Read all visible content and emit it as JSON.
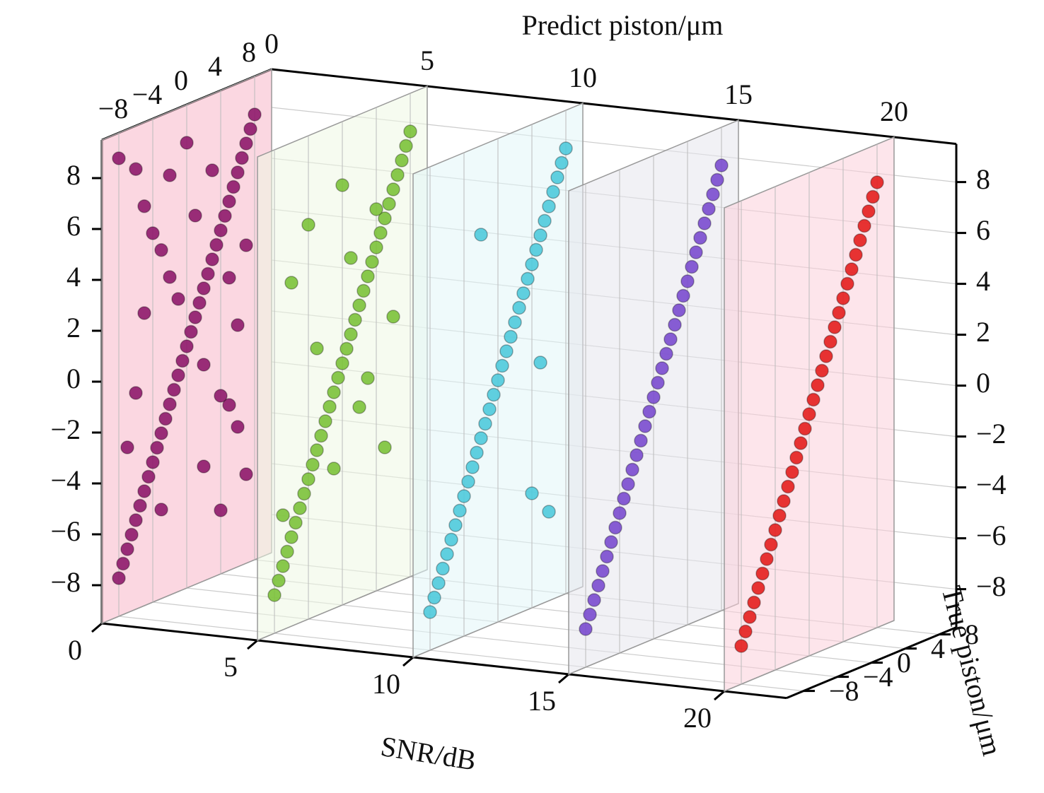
{
  "chart_data": {
    "type": "scatter3d",
    "x_label": "SNR/dB",
    "y_label": "True piston/μm",
    "z_label": "Predict piston/μm",
    "xlim": [
      0,
      22
    ],
    "xticks": [
      0,
      5,
      10,
      15,
      20
    ],
    "ylim": [
      -10,
      10
    ],
    "yticks": [
      {
        "value": -8,
        "label": "−8"
      },
      {
        "value": -4,
        "label": "−4"
      },
      0,
      4,
      8
    ],
    "zlim": [
      -9.5,
      9.5
    ],
    "zticks": [
      {
        "value": -8,
        "label": "−8"
      },
      {
        "value": -6,
        "label": "−6"
      },
      {
        "value": -4,
        "label": "−4"
      },
      {
        "value": -2,
        "label": "−2"
      },
      0,
      2,
      4,
      6,
      8
    ],
    "grid": true,
    "series": [
      {
        "snr": 0,
        "color": "#8e1a6c",
        "plane_color": "#f7b6c8",
        "true": [
          -8,
          -7.5,
          -7,
          -6.5,
          -6,
          -5.5,
          -5,
          -4.5,
          -4,
          -3.5,
          -3,
          -2.5,
          -2,
          -1.5,
          -1,
          -0.5,
          0,
          0.5,
          1,
          1.5,
          2,
          2.5,
          3,
          3.5,
          4,
          4.5,
          5,
          5.5,
          6,
          6.5,
          7,
          7.5,
          8,
          -8,
          -6,
          -5,
          -4,
          -3,
          -2,
          -1,
          6,
          5,
          4,
          2,
          7,
          -7,
          -6,
          -3,
          3,
          5,
          6,
          -2,
          0,
          1,
          2,
          -5,
          7,
          4
        ],
        "predict": [
          -8,
          -7.5,
          -7,
          -6.5,
          -6,
          -5.5,
          -5,
          -4.5,
          -4,
          -3.5,
          -3,
          -2.5,
          -2,
          -1.5,
          -1,
          -0.5,
          0,
          0.5,
          1,
          1.5,
          2,
          2.5,
          3,
          3.5,
          4,
          4.5,
          5,
          5.5,
          6,
          6.5,
          7,
          7.5,
          8,
          8.5,
          7.8,
          6.2,
          5,
          4.2,
          3,
          2,
          -4,
          -3,
          -2.5,
          -1,
          -6,
          -3,
          -1,
          -6,
          6.5,
          2,
          0,
          7,
          8,
          5,
          -5,
          2,
          3,
          -7
        ]
      },
      {
        "snr": 5,
        "color": "#7cc23a",
        "plane_color": "#eef7e4",
        "true": [
          -8,
          -7.5,
          -7,
          -6.5,
          -6,
          -5.5,
          -5,
          -4.5,
          -4,
          -3.5,
          -3,
          -2.5,
          -2,
          -1.5,
          -1,
          -0.5,
          0,
          0.5,
          1,
          1.5,
          2,
          2.5,
          3,
          3.5,
          4,
          4.5,
          5,
          5.5,
          6,
          6.5,
          7,
          7.5,
          8,
          -4,
          -6,
          0,
          2,
          5,
          -3,
          6,
          1,
          -1,
          3,
          -7,
          4
        ],
        "predict": [
          -8,
          -7.5,
          -7,
          -6.5,
          -6,
          -5.5,
          -5,
          -4.5,
          -4,
          -3.5,
          -3,
          -2.5,
          -2,
          -1.5,
          -1,
          -0.5,
          0,
          0.5,
          1,
          1.5,
          2,
          2.5,
          3,
          3.5,
          4,
          4.5,
          5,
          5.5,
          6,
          6.5,
          7,
          7.5,
          8,
          6,
          4,
          7,
          -2,
          -4,
          1,
          1,
          4,
          -4,
          -1,
          -5,
          5.5
        ]
      },
      {
        "snr": 10,
        "color": "#4fcadb",
        "plane_color": "#e2f6f7",
        "true": [
          -8,
          -7.5,
          -7,
          -6.5,
          -6,
          -5.5,
          -5,
          -4.5,
          -4,
          -3.5,
          -3,
          -2.5,
          -2,
          -1.5,
          -1,
          -0.5,
          0,
          0.5,
          1,
          1.5,
          2,
          2.5,
          3,
          3.5,
          4,
          4.5,
          5,
          5.5,
          6,
          6.5,
          7,
          7.5,
          8,
          -2,
          4,
          5,
          6
        ],
        "predict": [
          -8,
          -7.5,
          -7,
          -6.5,
          -6,
          -5.5,
          -5,
          -4.5,
          -4,
          -3.5,
          -3,
          -2.5,
          -2,
          -1.5,
          -1,
          -0.5,
          0,
          0.5,
          1,
          1.5,
          2,
          2.5,
          3,
          3.5,
          4,
          4.5,
          5,
          5.5,
          6,
          6.5,
          7,
          7.5,
          8,
          6,
          -5,
          0,
          -6
        ]
      },
      {
        "snr": 15,
        "color": "#7a4bcf",
        "plane_color": "#e6e6ec",
        "true": [
          -8,
          -7.5,
          -7,
          -6.5,
          -6,
          -5.5,
          -5,
          -4.5,
          -4,
          -3.5,
          -3,
          -2.5,
          -2,
          -1.5,
          -1,
          -0.5,
          0,
          0.5,
          1,
          1.5,
          2,
          2.5,
          3,
          3.5,
          4,
          4.5,
          5,
          5.5,
          6,
          6.5,
          7,
          7.5,
          8
        ],
        "predict": [
          -8,
          -7.5,
          -7,
          -6.5,
          -6,
          -5.5,
          -5,
          -4.5,
          -4,
          -3.5,
          -3,
          -2.5,
          -2,
          -1.5,
          -1,
          -0.5,
          0,
          0.5,
          1,
          1.5,
          2,
          2.5,
          3,
          3.5,
          4,
          4.5,
          5,
          5.5,
          6,
          6.5,
          7,
          7.5,
          8
        ]
      },
      {
        "snr": 20,
        "color": "#e41e1e",
        "plane_color": "#fbd0da",
        "true": [
          -8,
          -7.5,
          -7,
          -6.5,
          -6,
          -5.5,
          -5,
          -4.5,
          -4,
          -3.5,
          -3,
          -2.5,
          -2,
          -1.5,
          -1,
          -0.5,
          0,
          0.5,
          1,
          1.5,
          2,
          2.5,
          3,
          3.5,
          4,
          4.5,
          5,
          5.5,
          6,
          6.5,
          7,
          7.5,
          8
        ],
        "predict": [
          -8,
          -7.5,
          -7,
          -6.5,
          -6,
          -5.5,
          -5,
          -4.5,
          -4,
          -3.5,
          -3,
          -2.5,
          -2,
          -1.5,
          -1,
          -0.5,
          0,
          0.5,
          1,
          1.5,
          2,
          2.5,
          3,
          3.5,
          4,
          4.5,
          5,
          5.5,
          6,
          6.5,
          7,
          7.5,
          8
        ]
      }
    ]
  }
}
